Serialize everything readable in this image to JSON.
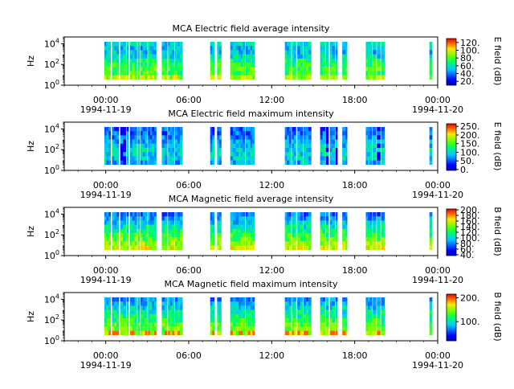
{
  "chart_data": [
    {
      "type": "heatmap",
      "title": "MCA  Electric field average intensity",
      "ylabel": "Hz",
      "y_scale": "log",
      "ylim": [
        1,
        50000
      ],
      "y_ticks": [
        {
          "base": "10",
          "exp": "0"
        },
        {
          "base": "10",
          "exp": "2"
        },
        {
          "base": "10",
          "exp": "4"
        }
      ],
      "x_ticks": [
        "00:00",
        "06:00",
        "12:00",
        "18:00",
        "00:00"
      ],
      "x_dates": [
        "1994-11-19",
        "1994-11-20"
      ],
      "colorbar": {
        "label": "E field (dB)",
        "range": [
          10,
          130
        ],
        "ticks": [
          "20.",
          "40.",
          "60.",
          "80.",
          "100.",
          "120."
        ],
        "tick_values": [
          20,
          40,
          60,
          80,
          100,
          120
        ]
      },
      "data_segments_hours": [
        [
          -0.1,
          0.35
        ],
        [
          0.45,
          0.95
        ],
        [
          1.05,
          1.45
        ],
        [
          1.5,
          1.65
        ],
        [
          1.75,
          2.25
        ],
        [
          2.3,
          2.45
        ],
        [
          2.5,
          3.0
        ],
        [
          3.05,
          3.35
        ],
        [
          3.35,
          3.65
        ],
        [
          4.05,
          4.45
        ],
        [
          4.5,
          4.95
        ],
        [
          5.0,
          5.55
        ],
        [
          7.55,
          7.85
        ],
        [
          8.05,
          8.35
        ],
        [
          9.0,
          9.6
        ],
        [
          9.6,
          10.05
        ],
        [
          10.1,
          10.45
        ],
        [
          10.45,
          10.75
        ],
        [
          12.95,
          13.4
        ],
        [
          13.45,
          13.75
        ],
        [
          13.85,
          14.25
        ],
        [
          14.3,
          14.65
        ],
        [
          14.65,
          14.85
        ],
        [
          15.5,
          15.85
        ],
        [
          15.9,
          16.1
        ],
        [
          16.2,
          16.55
        ],
        [
          16.6,
          16.75
        ],
        [
          17.1,
          17.35
        ],
        [
          17.35,
          17.45
        ],
        [
          18.8,
          19.25
        ],
        [
          19.3,
          19.55
        ],
        [
          19.6,
          19.85
        ],
        [
          19.9,
          20.15
        ],
        [
          23.4,
          23.6
        ]
      ]
    },
    {
      "type": "heatmap",
      "title": "MCA  Electric field maximum intensity",
      "ylabel": "Hz",
      "y_scale": "log",
      "ylim": [
        1,
        50000
      ],
      "y_ticks": [
        {
          "base": "10",
          "exp": "0"
        },
        {
          "base": "10",
          "exp": "2"
        },
        {
          "base": "10",
          "exp": "4"
        }
      ],
      "x_ticks": [
        "00:00",
        "06:00",
        "12:00",
        "18:00",
        "00:00"
      ],
      "x_dates": [
        "1994-11-19",
        "1994-11-20"
      ],
      "colorbar": {
        "label": "E field (dB)",
        "range": [
          -5,
          265
        ],
        "ticks": [
          "0.",
          "50.",
          "100.",
          "150.",
          "200.",
          "250."
        ],
        "tick_values": [
          0,
          50,
          100,
          150,
          200,
          250
        ]
      },
      "data_segments_hours": [
        [
          -0.1,
          0.35
        ],
        [
          0.45,
          0.95
        ],
        [
          1.05,
          1.45
        ],
        [
          1.5,
          1.65
        ],
        [
          1.75,
          2.25
        ],
        [
          2.3,
          2.45
        ],
        [
          2.5,
          3.0
        ],
        [
          3.05,
          3.35
        ],
        [
          3.35,
          3.65
        ],
        [
          4.05,
          4.45
        ],
        [
          4.5,
          4.95
        ],
        [
          5.0,
          5.55
        ],
        [
          7.55,
          7.85
        ],
        [
          8.05,
          8.35
        ],
        [
          9.0,
          9.6
        ],
        [
          9.6,
          10.05
        ],
        [
          10.1,
          10.45
        ],
        [
          10.45,
          10.75
        ],
        [
          12.95,
          13.4
        ],
        [
          13.45,
          13.75
        ],
        [
          13.85,
          14.25
        ],
        [
          14.3,
          14.65
        ],
        [
          14.65,
          14.85
        ],
        [
          15.5,
          15.85
        ],
        [
          15.9,
          16.1
        ],
        [
          16.2,
          16.55
        ],
        [
          16.6,
          16.75
        ],
        [
          17.1,
          17.35
        ],
        [
          17.35,
          17.45
        ],
        [
          18.8,
          19.25
        ],
        [
          19.3,
          19.55
        ],
        [
          19.6,
          19.85
        ],
        [
          19.9,
          20.15
        ],
        [
          23.4,
          23.6
        ]
      ]
    },
    {
      "type": "heatmap",
      "title": "MCA  Magnetic field average intensity",
      "ylabel": "Hz",
      "y_scale": "log",
      "ylim": [
        1,
        50000
      ],
      "y_ticks": [
        {
          "base": "10",
          "exp": "0"
        },
        {
          "base": "10",
          "exp": "2"
        },
        {
          "base": "10",
          "exp": "4"
        }
      ],
      "x_ticks": [
        "00:00",
        "06:00",
        "12:00",
        "18:00",
        "00:00"
      ],
      "x_dates": [
        "1994-11-19",
        "1994-11-20"
      ],
      "colorbar": {
        "label": "B field (dB)",
        "range": [
          37,
          203
        ],
        "ticks": [
          "40.",
          "60.",
          "80.",
          "100.",
          "120.",
          "140.",
          "160.",
          "180.",
          "200."
        ],
        "tick_values": [
          40,
          60,
          80,
          100,
          120,
          140,
          160,
          180,
          200
        ]
      },
      "data_segments_hours": [
        [
          -0.1,
          0.35
        ],
        [
          0.45,
          0.95
        ],
        [
          1.05,
          1.45
        ],
        [
          1.5,
          1.65
        ],
        [
          1.75,
          2.25
        ],
        [
          2.3,
          2.45
        ],
        [
          2.5,
          3.0
        ],
        [
          3.05,
          3.35
        ],
        [
          3.35,
          3.65
        ],
        [
          4.05,
          4.45
        ],
        [
          4.5,
          4.95
        ],
        [
          5.0,
          5.55
        ],
        [
          7.55,
          7.85
        ],
        [
          8.05,
          8.35
        ],
        [
          9.0,
          9.6
        ],
        [
          9.6,
          10.05
        ],
        [
          10.1,
          10.45
        ],
        [
          10.45,
          10.75
        ],
        [
          12.95,
          13.4
        ],
        [
          13.45,
          13.75
        ],
        [
          13.85,
          14.25
        ],
        [
          14.3,
          14.65
        ],
        [
          14.65,
          14.85
        ],
        [
          15.5,
          15.85
        ],
        [
          15.9,
          16.1
        ],
        [
          16.2,
          16.55
        ],
        [
          16.6,
          16.75
        ],
        [
          17.1,
          17.35
        ],
        [
          17.35,
          17.45
        ],
        [
          18.8,
          19.25
        ],
        [
          19.3,
          19.55
        ],
        [
          19.6,
          19.85
        ],
        [
          19.9,
          20.15
        ],
        [
          23.4,
          23.6
        ]
      ]
    },
    {
      "type": "heatmap",
      "title": "MCA  Magnetic field maximum intensity",
      "ylabel": "Hz",
      "y_scale": "log",
      "ylim": [
        1,
        50000
      ],
      "y_ticks": [
        {
          "base": "10",
          "exp": "0"
        },
        {
          "base": "10",
          "exp": "2"
        },
        {
          "base": "10",
          "exp": "4"
        }
      ],
      "x_ticks": [
        "00:00",
        "06:00",
        "12:00",
        "18:00",
        "00:00"
      ],
      "x_dates": [
        "1994-11-19",
        "1994-11-20"
      ],
      "colorbar": {
        "label": "B field (dB)",
        "range": [
          20,
          215
        ],
        "ticks": [
          "100.",
          "200."
        ],
        "tick_values": [
          100,
          200
        ]
      },
      "data_segments_hours": [
        [
          -0.1,
          0.35
        ],
        [
          0.45,
          0.95
        ],
        [
          1.05,
          1.45
        ],
        [
          1.5,
          1.65
        ],
        [
          1.75,
          2.25
        ],
        [
          2.3,
          2.45
        ],
        [
          2.5,
          3.0
        ],
        [
          3.05,
          3.35
        ],
        [
          3.35,
          3.65
        ],
        [
          4.05,
          4.45
        ],
        [
          4.5,
          4.95
        ],
        [
          5.0,
          5.55
        ],
        [
          7.55,
          7.85
        ],
        [
          8.05,
          8.35
        ],
        [
          9.0,
          9.6
        ],
        [
          9.6,
          10.05
        ],
        [
          10.1,
          10.45
        ],
        [
          10.45,
          10.75
        ],
        [
          12.95,
          13.4
        ],
        [
          13.45,
          13.75
        ],
        [
          13.85,
          14.25
        ],
        [
          14.3,
          14.65
        ],
        [
          14.65,
          14.85
        ],
        [
          15.5,
          15.85
        ],
        [
          15.9,
          16.1
        ],
        [
          16.2,
          16.55
        ],
        [
          16.6,
          16.75
        ],
        [
          17.1,
          17.35
        ],
        [
          17.35,
          17.45
        ],
        [
          18.8,
          19.25
        ],
        [
          19.3,
          19.55
        ],
        [
          19.6,
          19.85
        ],
        [
          19.9,
          20.15
        ],
        [
          23.4,
          23.6
        ]
      ]
    }
  ]
}
